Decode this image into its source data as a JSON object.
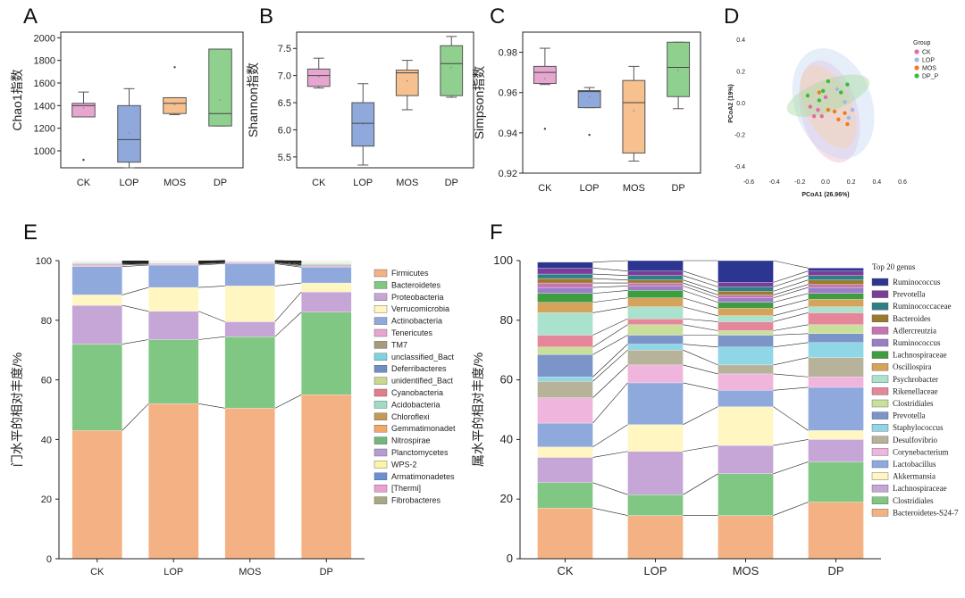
{
  "panels": {
    "A": {
      "letter": "A",
      "ylabel": "Chao1指数",
      "categories": [
        "CK",
        "LOP",
        "MOS",
        "DP"
      ],
      "yticks": [
        "1000",
        "1200",
        "1400",
        "1600",
        "1800",
        "2000"
      ]
    },
    "B": {
      "letter": "B",
      "ylabel": "Shannon指数",
      "categories": [
        "CK",
        "LOP",
        "MOS",
        "DP"
      ],
      "yticks": [
        "5.5",
        "6.0",
        "6.5",
        "7.0",
        "7.5"
      ]
    },
    "C": {
      "letter": "C",
      "ylabel": "Simpson指数",
      "categories": [
        "CK",
        "LOP",
        "MOS",
        "DP"
      ],
      "yticks": [
        "0.92",
        "0.94",
        "0.96",
        "0.98"
      ]
    },
    "D": {
      "letter": "D",
      "xlabel": "PCoA1 (26.96%)",
      "ylabel": "PCoA2 (19%)",
      "legend_title": "Group",
      "groups": [
        "CK",
        "LOP",
        "MOS",
        "DP_P"
      ],
      "xticks": [
        "-0.6",
        "-0.4",
        "-0.2",
        "0.0",
        "0.2",
        "0.4",
        "0.6"
      ],
      "yticks": [
        "-0.4",
        "-0.2",
        "0.0",
        "0.2",
        "0.4"
      ]
    },
    "E": {
      "letter": "E",
      "ylabel": "门水平的相对丰度/%",
      "categories": [
        "CK",
        "LOP",
        "MOS",
        "DP"
      ],
      "yticks": [
        "0",
        "20",
        "40",
        "60",
        "80",
        "100"
      ]
    },
    "F": {
      "letter": "F",
      "ylabel": "属水平的相对丰度/%",
      "legend_title": "Top 20 genus",
      "categories": [
        "CK",
        "LOP",
        "MOS",
        "DP"
      ],
      "yticks": [
        "0",
        "20",
        "40",
        "60",
        "80",
        "100"
      ]
    }
  },
  "chart_data": [
    {
      "id": "A",
      "type": "box",
      "title": "",
      "xlabel": "",
      "ylabel": "Chao1指数",
      "ylim": [
        850,
        2050
      ],
      "boxes": [
        {
          "name": "CK",
          "color": "#e7a6cf",
          "min": 1300,
          "q1": 1300,
          "median": 1400,
          "q3": 1420,
          "max": 1520,
          "mean": 1380,
          "outliers": [
            920
          ]
        },
        {
          "name": "LOP",
          "color": "#8fa9dd",
          "min": 850,
          "q1": 900,
          "median": 1100,
          "q3": 1400,
          "max": 1550,
          "mean": 1160,
          "outliers": []
        },
        {
          "name": "MOS",
          "color": "#f6c08f",
          "min": 1320,
          "q1": 1330,
          "median": 1420,
          "q3": 1470,
          "max": 1470,
          "mean": 1410,
          "outliers": [
            1740
          ]
        },
        {
          "name": "DP",
          "color": "#8fd08f",
          "min": 1220,
          "q1": 1220,
          "median": 1330,
          "q3": 1900,
          "max": 1900,
          "mean": 1450,
          "outliers": []
        }
      ]
    },
    {
      "id": "B",
      "type": "box",
      "title": "",
      "xlabel": "",
      "ylabel": "Shannon指数",
      "ylim": [
        5.3,
        7.8
      ],
      "boxes": [
        {
          "name": "CK",
          "color": "#e7a6cf",
          "min": 6.77,
          "q1": 6.8,
          "median": 7.0,
          "q3": 7.12,
          "max": 7.32,
          "mean": 6.98,
          "outliers": []
        },
        {
          "name": "LOP",
          "color": "#8fa9dd",
          "min": 5.35,
          "q1": 5.7,
          "median": 6.12,
          "q3": 6.5,
          "max": 6.85,
          "mean": 6.1,
          "outliers": []
        },
        {
          "name": "MOS",
          "color": "#f6c08f",
          "min": 6.37,
          "q1": 6.63,
          "median": 7.05,
          "q3": 7.1,
          "max": 7.28,
          "mean": 6.9,
          "outliers": []
        },
        {
          "name": "DP",
          "color": "#8fd08f",
          "min": 6.6,
          "q1": 6.63,
          "median": 7.22,
          "q3": 7.55,
          "max": 7.72,
          "mean": 7.15,
          "outliers": []
        }
      ]
    },
    {
      "id": "C",
      "type": "box",
      "title": "",
      "xlabel": "",
      "ylabel": "Simpson指数",
      "ylim": [
        0.92,
        0.99
      ],
      "boxes": [
        {
          "name": "CK",
          "color": "#e7a6cf",
          "min": 0.964,
          "q1": 0.9645,
          "median": 0.97,
          "q3": 0.973,
          "max": 0.982,
          "mean": 0.967,
          "outliers": [
            0.942
          ]
        },
        {
          "name": "LOP",
          "color": "#8fa9dd",
          "min": 0.9525,
          "q1": 0.9525,
          "median": 0.9605,
          "q3": 0.961,
          "max": 0.9625,
          "mean": 0.958,
          "outliers": [
            0.939
          ]
        },
        {
          "name": "MOS",
          "color": "#f6c08f",
          "min": 0.926,
          "q1": 0.93,
          "median": 0.955,
          "q3": 0.966,
          "max": 0.973,
          "mean": 0.951,
          "outliers": []
        },
        {
          "name": "DP",
          "color": "#8fd08f",
          "min": 0.952,
          "q1": 0.958,
          "median": 0.9725,
          "q3": 0.985,
          "max": 0.985,
          "mean": 0.971,
          "outliers": []
        }
      ]
    },
    {
      "id": "D",
      "type": "scatter",
      "title": "",
      "xlabel": "PCoA1 (26.96%)",
      "ylabel": "PCoA2 (19%)",
      "xlim": [
        -0.6,
        0.6
      ],
      "ylim": [
        -0.45,
        0.45
      ],
      "series": [
        {
          "name": "CK",
          "color": "#e26aa8",
          "ellipse": {
            "cx": 0.03,
            "cy": -0.05,
            "rx": 0.22,
            "ry": 0.33,
            "angle": -15,
            "color": "#f2b6d6"
          },
          "points": [
            [
              -0.12,
              -0.02
            ],
            [
              -0.06,
              -0.04
            ],
            [
              0.0,
              0.04
            ],
            [
              -0.09,
              -0.08
            ],
            [
              -0.03,
              -0.08
            ]
          ]
        },
        {
          "name": "LOP",
          "color": "#9bbbe8",
          "ellipse": {
            "cx": 0.06,
            "cy": 0.0,
            "rx": 0.3,
            "ry": 0.36,
            "angle": -20,
            "color": "#c8daf4"
          },
          "points": [
            [
              0.18,
              -0.09
            ],
            [
              0.21,
              -0.04
            ],
            [
              0.15,
              0.01
            ],
            [
              0.09,
              0.09
            ]
          ]
        },
        {
          "name": "MOS",
          "color": "#ef7d1b",
          "ellipse": {
            "cx": 0.02,
            "cy": -0.02,
            "rx": 0.18,
            "ry": 0.28,
            "angle": -25,
            "color": "#f5cfa8"
          },
          "points": [
            [
              0.07,
              -0.05
            ],
            [
              0.15,
              -0.06
            ],
            [
              0.1,
              -0.1
            ],
            [
              0.17,
              -0.13
            ],
            [
              0.02,
              -0.04
            ],
            [
              -0.05,
              0.07
            ]
          ]
        },
        {
          "name": "DP_P",
          "color": "#3bbb3b",
          "ellipse": {
            "cx": 0.02,
            "cy": 0.05,
            "rx": 0.34,
            "ry": 0.1,
            "angle": -20,
            "color": "#a9dca0"
          },
          "points": [
            [
              -0.14,
              0.05
            ],
            [
              -0.02,
              0.08
            ],
            [
              0.02,
              0.14
            ],
            [
              0.12,
              0.07
            ],
            [
              0.17,
              0.12
            ],
            [
              -0.05,
              0.02
            ]
          ]
        }
      ]
    },
    {
      "id": "E",
      "type": "bar",
      "stacked": true,
      "title": "",
      "xlabel": "",
      "ylabel": "门水平的相对丰度/%",
      "categories": [
        "CK",
        "LOP",
        "MOS",
        "DP"
      ],
      "ylim": [
        0,
        100
      ],
      "series": [
        {
          "name": "Firmicutes",
          "color": "#f4b183",
          "values": [
            43,
            52,
            50.5,
            55
          ]
        },
        {
          "name": "Bacteroidetes",
          "color": "#81c784",
          "values": [
            29,
            21.5,
            24,
            27.7
          ]
        },
        {
          "name": "Proteobacteria",
          "color": "#c5a6d6",
          "values": [
            13,
            9.5,
            5,
            6.8
          ]
        },
        {
          "name": "Verrucomicrobia",
          "color": "#fff6c2",
          "values": [
            3.5,
            8,
            12,
            3
          ]
        },
        {
          "name": "Actinobacteria",
          "color": "#8fa9dd",
          "values": [
            9.5,
            7.5,
            7.5,
            5.3
          ]
        },
        {
          "name": "Tenericutes",
          "color": "#e7a6cf",
          "values": [
            0.5,
            0.3,
            0.3,
            0.4
          ]
        },
        {
          "name": "TM7",
          "color": "#a79b7e",
          "values": [
            0.3,
            0.2,
            0.2,
            0.3
          ]
        },
        {
          "name": "unclassified_Bact",
          "color": "#7dd3e0",
          "values": [
            0.2,
            0.1,
            0.1,
            0.2
          ]
        },
        {
          "name": "Deferribacteres",
          "color": "#6f8fc0",
          "values": [
            0.2,
            0.1,
            0.1,
            0.2
          ]
        },
        {
          "name": "unidentified_Bact",
          "color": "#c6d98f",
          "values": [
            0.1,
            0.1,
            0.1,
            0.2
          ]
        },
        {
          "name": "Cyanobacteria",
          "color": "#e07f89",
          "values": [
            0.1,
            0.1,
            0.1,
            0.1
          ]
        },
        {
          "name": "Acidobacteria",
          "color": "#9fdcc4",
          "values": [
            0.1,
            0.1,
            0.05,
            0.1
          ]
        },
        {
          "name": "Chloroflexi",
          "color": "#c49a55",
          "values": [
            0.05,
            0.05,
            0.05,
            0.1
          ]
        },
        {
          "name": "Gemmatimonadet",
          "color": "#f0a86b",
          "values": [
            0.05,
            0.05,
            0.05,
            0.1
          ]
        },
        {
          "name": "Nitrospirae",
          "color": "#73b87a",
          "values": [
            0.05,
            0.05,
            0.05,
            0.1
          ]
        },
        {
          "name": "Planctomycetes",
          "color": "#b59cd3",
          "values": [
            0.05,
            0.05,
            0.05,
            0.1
          ]
        },
        {
          "name": "WPS-2",
          "color": "#fbf5a8",
          "values": [
            0.05,
            0.05,
            0.05,
            0.05
          ]
        },
        {
          "name": "Armatimonadetes",
          "color": "#6b8fd6",
          "values": [
            0.05,
            0.05,
            0.05,
            0.05
          ]
        },
        {
          "name": "[Thermi]",
          "color": "#eaa0d2",
          "values": [
            0.05,
            0.05,
            0.05,
            0.05
          ]
        },
        {
          "name": "Fibrobacteres",
          "color": "#a8a883",
          "values": [
            0.05,
            0.05,
            0.05,
            0.05
          ]
        }
      ]
    },
    {
      "id": "F",
      "type": "bar",
      "stacked": true,
      "title": "",
      "xlabel": "",
      "ylabel": "属水平的相对丰度/%",
      "categories": [
        "CK",
        "LOP",
        "MOS",
        "DP"
      ],
      "ylim": [
        0,
        100
      ],
      "series": [
        {
          "name": "Bacteroidetes-S24-7",
          "color": "#f4b183",
          "values": [
            17,
            14.5,
            14.5,
            19
          ]
        },
        {
          "name": "Clostridiales",
          "color": "#81c784",
          "values": [
            8.5,
            7,
            14,
            13.5
          ]
        },
        {
          "name": "Lachnospiraceae",
          "color": "#c5a6d6",
          "values": [
            8.5,
            14.5,
            9.5,
            7.5
          ]
        },
        {
          "name": "Akkermansia",
          "color": "#fff6c2",
          "values": [
            3.5,
            9,
            13,
            3
          ]
        },
        {
          "name": "Lactobacillus",
          "color": "#8fa9dd",
          "values": [
            8,
            14,
            5.5,
            14.5
          ]
        },
        {
          "name": "Corynebacterium",
          "color": "#f0b5dc",
          "values": [
            8.5,
            6,
            5.5,
            3.5
          ]
        },
        {
          "name": "Desulfovibrio",
          "color": "#b7b29a",
          "values": [
            5.5,
            5,
            3,
            6.5
          ]
        },
        {
          "name": "Staphylococcus",
          "color": "#8fd6e6",
          "values": [
            1.5,
            2,
            6,
            5
          ]
        },
        {
          "name": "Prevotella",
          "color": "#7b95c8",
          "values": [
            7.5,
            3,
            4,
            3
          ]
        },
        {
          "name": "Clostridiales",
          "color": "#c9e09a",
          "values": [
            2.5,
            3.5,
            1.5,
            3
          ]
        },
        {
          "name": "Rikenellaceae",
          "color": "#e4879a",
          "values": [
            4,
            2,
            3,
            4
          ]
        },
        {
          "name": "Psychrobacter",
          "color": "#a9e3cd",
          "values": [
            7.5,
            4,
            2,
            2
          ]
        },
        {
          "name": "Oscillospira",
          "color": "#d4a35c",
          "values": [
            3.5,
            3,
            2.5,
            2.5
          ]
        },
        {
          "name": "Lachnospiraceae",
          "color": "#3f9d3f",
          "values": [
            3,
            2.5,
            2,
            2
          ]
        },
        {
          "name": "Ruminococcus",
          "color": "#9b7fc6",
          "values": [
            2,
            1.5,
            1.5,
            2
          ]
        },
        {
          "name": "Adlercreutzia",
          "color": "#c874b0",
          "values": [
            1.5,
            1,
            1,
            1
          ]
        },
        {
          "name": "Bacteroides",
          "color": "#9a7b2c",
          "values": [
            1.5,
            1,
            1.2,
            1.5
          ]
        },
        {
          "name": "Ruminococcaceae",
          "color": "#2f7f86",
          "values": [
            1.5,
            1.5,
            1.5,
            1.5
          ]
        },
        {
          "name": "Prevotella",
          "color": "#7a3d99",
          "values": [
            2,
            1.5,
            1.5,
            1.5
          ]
        },
        {
          "name": "Ruminococcus",
          "color": "#2c3691",
          "values": [
            2,
            3.5,
            7.8,
            1
          ]
        }
      ]
    }
  ]
}
